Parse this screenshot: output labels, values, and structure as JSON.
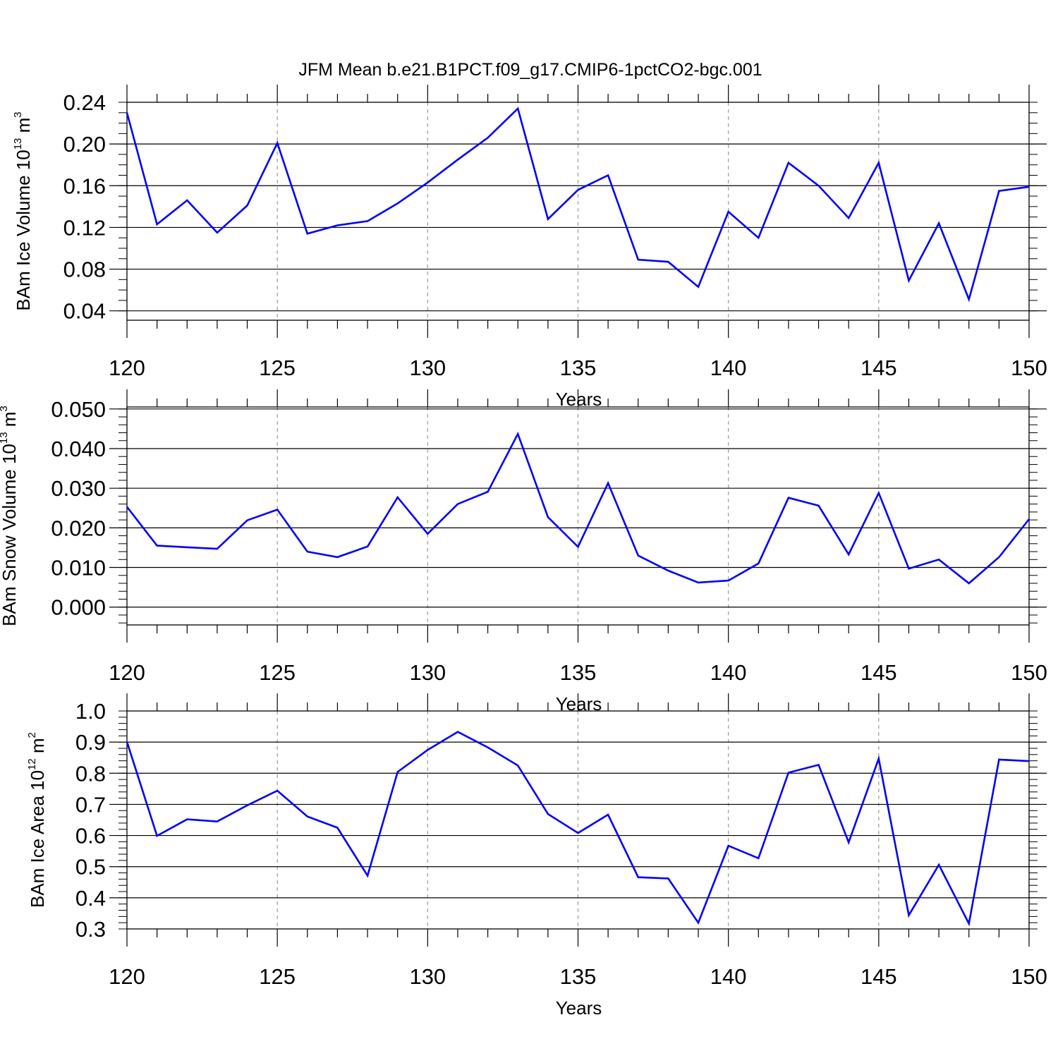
{
  "title": "JFM Mean b.e21.B1PCT.f09_g17.CMIP6-1pctCO2-bgc.001",
  "colors": {
    "line": "#0000ff",
    "axis": "#000000",
    "grid": "#999999"
  },
  "chart_data": [
    {
      "type": "line",
      "name": "ice-volume",
      "xlabel": "Years",
      "ylabel": {
        "text": "BAm Ice Volume 10",
        "exp": "13",
        "unit": " m",
        "unit_exp": "3"
      },
      "xlim": [
        120,
        150
      ],
      "ylim": [
        0.031,
        0.24
      ],
      "xticks": [
        120,
        125,
        130,
        135,
        140,
        145,
        150
      ],
      "xtick_labels": [
        "120",
        "125",
        "130",
        "135",
        "140",
        "145",
        "150"
      ],
      "yticks": [
        0.04,
        0.08,
        0.12,
        0.16,
        0.2,
        0.24
      ],
      "ytick_labels": [
        "0.04",
        "0.08",
        "0.12",
        "0.16",
        "0.20",
        "0.24"
      ],
      "yminor": 0.01,
      "grid_x": true,
      "x": [
        120,
        121,
        122,
        123,
        124,
        125,
        126,
        127,
        128,
        129,
        130,
        131,
        132,
        133,
        134,
        135,
        136,
        137,
        138,
        139,
        140,
        141,
        142,
        143,
        144,
        145,
        146,
        147,
        148,
        149,
        150
      ],
      "values": [
        0.23,
        0.123,
        0.146,
        0.115,
        0.141,
        0.201,
        0.114,
        0.122,
        0.126,
        0.143,
        0.163,
        0.185,
        0.206,
        0.234,
        0.128,
        0.156,
        0.17,
        0.089,
        0.087,
        0.063,
        0.135,
        0.11,
        0.182,
        0.16,
        0.129,
        0.182,
        0.069,
        0.124,
        0.051,
        0.155,
        0.159
      ]
    },
    {
      "type": "line",
      "name": "snow-volume",
      "xlabel": "Years",
      "ylabel": {
        "text": "BAm Snow Volume 10",
        "exp": "13",
        "unit": " m",
        "unit_exp": "3"
      },
      "xlim": [
        120,
        150
      ],
      "ylim": [
        -0.0045,
        0.0505
      ],
      "xticks": [
        120,
        125,
        130,
        135,
        140,
        145,
        150
      ],
      "xtick_labels": [
        "120",
        "125",
        "130",
        "135",
        "140",
        "145",
        "150"
      ],
      "yticks": [
        0.0,
        0.01,
        0.02,
        0.03,
        0.04,
        0.05
      ],
      "ytick_labels": [
        "0.000",
        "0.010",
        "0.020",
        "0.030",
        "0.040",
        "0.050"
      ],
      "yminor": 0.002,
      "grid_x": true,
      "x": [
        120,
        121,
        122,
        123,
        124,
        125,
        126,
        127,
        128,
        129,
        130,
        131,
        132,
        133,
        134,
        135,
        136,
        137,
        138,
        139,
        140,
        141,
        142,
        143,
        144,
        145,
        146,
        147,
        148,
        149,
        150
      ],
      "values": [
        0.0253,
        0.0155,
        0.0151,
        0.0147,
        0.0219,
        0.0246,
        0.014,
        0.0126,
        0.0153,
        0.0277,
        0.0185,
        0.026,
        0.0291,
        0.0437,
        0.0227,
        0.0152,
        0.0313,
        0.013,
        0.0092,
        0.0062,
        0.0067,
        0.011,
        0.0276,
        0.0256,
        0.0133,
        0.0288,
        0.0097,
        0.012,
        0.006,
        0.0126,
        0.0222
      ]
    },
    {
      "type": "line",
      "name": "ice-area",
      "xlabel": "Years",
      "ylabel": {
        "text": "BAm Ice Area 10",
        "exp": "12",
        "unit": " m",
        "unit_exp": "2"
      },
      "xlim": [
        120,
        150
      ],
      "ylim": [
        0.3,
        1.0
      ],
      "xticks": [
        120,
        125,
        130,
        135,
        140,
        145,
        150
      ],
      "xtick_labels": [
        "120",
        "125",
        "130",
        "135",
        "140",
        "145",
        "150"
      ],
      "yticks": [
        0.3,
        0.4,
        0.5,
        0.6,
        0.7,
        0.8,
        0.9,
        1.0
      ],
      "ytick_labels": [
        "0.3",
        "0.4",
        "0.5",
        "0.6",
        "0.7",
        "0.8",
        "0.9",
        "1.0"
      ],
      "yminor": 0.02,
      "grid_x": true,
      "x": [
        120,
        121,
        122,
        123,
        124,
        125,
        126,
        127,
        128,
        129,
        130,
        131,
        132,
        133,
        134,
        135,
        136,
        137,
        138,
        139,
        140,
        141,
        142,
        143,
        144,
        145,
        146,
        147,
        148,
        149,
        150
      ],
      "values": [
        0.901,
        0.599,
        0.652,
        0.645,
        0.697,
        0.744,
        0.661,
        0.625,
        0.471,
        0.804,
        0.875,
        0.933,
        0.883,
        0.825,
        0.669,
        0.608,
        0.667,
        0.466,
        0.462,
        0.32,
        0.567,
        0.527,
        0.802,
        0.827,
        0.578,
        0.847,
        0.344,
        0.506,
        0.317,
        0.844,
        0.839
      ]
    }
  ]
}
